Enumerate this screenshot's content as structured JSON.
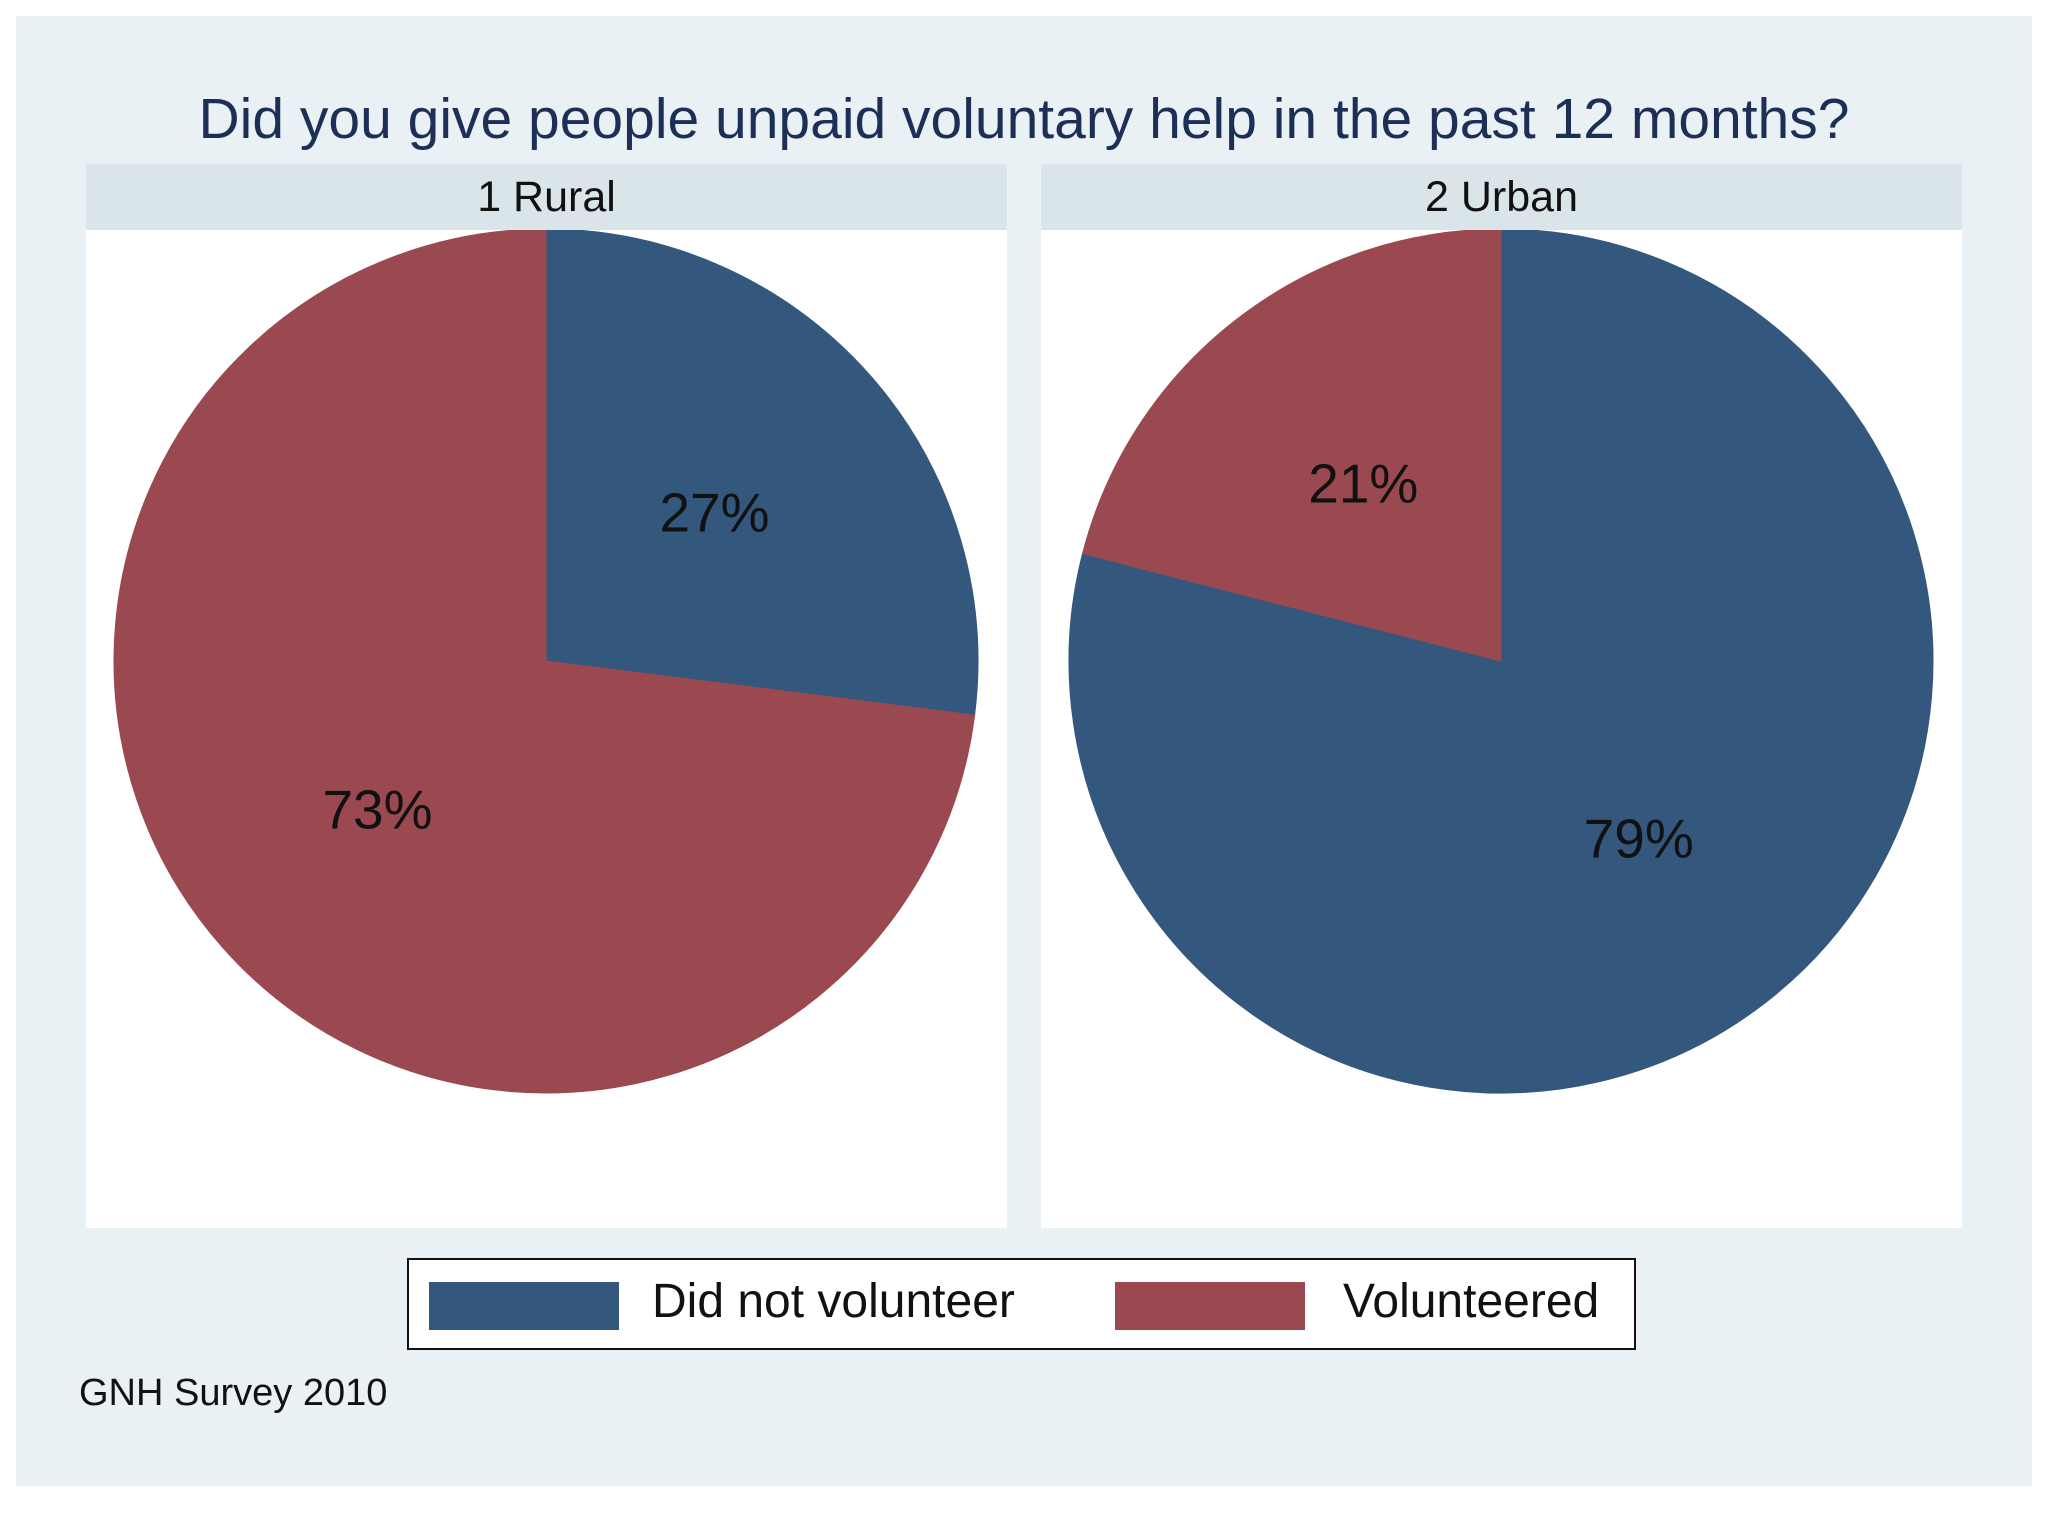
{
  "chart_data": {
    "type": "pie",
    "title": "Did you give people unpaid voluntary help  in the past 12 months?",
    "note": "GNH Survey 2010",
    "legend_position": "bottom",
    "categories": [
      "Did not volunteer",
      "Volunteered"
    ],
    "colors": [
      "#34587d",
      "#9b4951"
    ],
    "panels": [
      {
        "name": "1 Rural",
        "values": [
          27,
          73
        ],
        "labels": [
          "27%",
          "73%"
        ]
      },
      {
        "name": "2 Urban",
        "values": [
          79,
          21
        ],
        "labels": [
          "79%",
          "21%"
        ]
      }
    ]
  }
}
